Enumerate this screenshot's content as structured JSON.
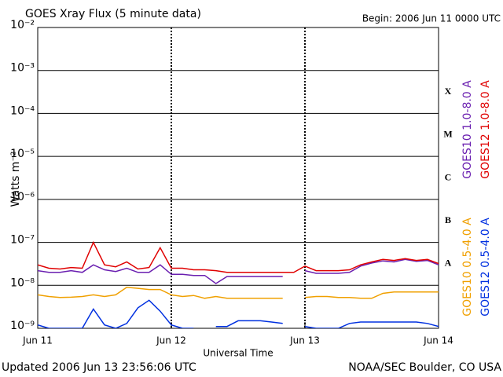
{
  "chart_data": {
    "type": "line",
    "title": "GOES Xray Flux (5 minute data)",
    "subtitle": "Begin:  2006 Jun 11 0000 UTC",
    "xlabel": "Universal Time",
    "ylabel": "Watts m⁻²",
    "footer_left": "Updated 2006 Jun 13 23:56:06 UTC",
    "footer_right": "NOAA/SEC Boulder, CO USA",
    "log_y": true,
    "grid": true,
    "xlim": [
      0,
      72
    ],
    "xticks": [
      {
        "value": 0,
        "label": "Jun 11"
      },
      {
        "value": 24,
        "label": "Jun 12"
      },
      {
        "value": 48,
        "label": "Jun 13"
      },
      {
        "value": 72,
        "label": "Jun 14"
      }
    ],
    "ylim": [
      1e-09,
      0.01
    ],
    "yticks": [
      {
        "value": 1e-09,
        "label": "10⁻⁹"
      },
      {
        "value": 1e-08,
        "label": "10⁻⁸"
      },
      {
        "value": 1e-07,
        "label": "10⁻⁷"
      },
      {
        "value": 1e-06,
        "label": "10⁻⁶"
      },
      {
        "value": 1e-05,
        "label": "10⁻⁵"
      },
      {
        "value": 0.0001,
        "label": "10⁻⁴"
      },
      {
        "value": 0.001,
        "label": "10⁻³"
      },
      {
        "value": 0.01,
        "label": "10⁻²"
      }
    ],
    "flare_classes": [
      {
        "value": 1e-08,
        "label": "A"
      },
      {
        "value": 1e-07,
        "label": "B"
      },
      {
        "value": 1e-06,
        "label": "C"
      },
      {
        "value": 1e-05,
        "label": "M"
      },
      {
        "value": 0.0001,
        "label": "X"
      }
    ],
    "x": [
      0,
      2,
      4,
      6,
      8,
      10,
      12,
      14,
      16,
      18,
      20,
      22,
      24,
      26,
      28,
      30,
      32,
      34,
      36,
      38,
      40,
      42,
      44,
      46,
      48,
      50,
      52,
      54,
      56,
      58,
      60,
      62,
      64,
      66,
      68,
      70,
      72
    ],
    "series": [
      {
        "name": "GOES10 1.0-8.0 A",
        "color": "#6a1fb0",
        "values": [
          2.2e-08,
          2e-08,
          2e-08,
          2.2e-08,
          2e-08,
          3e-08,
          2.3e-08,
          2.1e-08,
          2.5e-08,
          2e-08,
          2e-08,
          3e-08,
          1.8e-08,
          1.8e-08,
          1.7e-08,
          1.7e-08,
          1.1e-08,
          1.6e-08,
          1.6e-08,
          1.6e-08,
          1.6e-08,
          1.6e-08,
          1.6e-08,
          null,
          2.2e-08,
          1.9e-08,
          1.9e-08,
          1.9e-08,
          2e-08,
          2.8e-08,
          3.3e-08,
          3.7e-08,
          3.5e-08,
          4e-08,
          3.6e-08,
          3.8e-08,
          3e-08
        ]
      },
      {
        "name": "GOES12 1.0-8.0 A",
        "color": "#e00000",
        "values": [
          3e-08,
          2.5e-08,
          2.4e-08,
          2.6e-08,
          2.5e-08,
          1e-07,
          3e-08,
          2.7e-08,
          3.5e-08,
          2.4e-08,
          2.6e-08,
          7.5e-08,
          2.5e-08,
          2.5e-08,
          2.3e-08,
          2.3e-08,
          2.2e-08,
          2e-08,
          2e-08,
          2e-08,
          2e-08,
          2e-08,
          2e-08,
          2e-08,
          2.8e-08,
          2.2e-08,
          2.2e-08,
          2.2e-08,
          2.3e-08,
          3e-08,
          3.5e-08,
          4e-08,
          3.8e-08,
          4.2e-08,
          3.8e-08,
          4e-08,
          3.2e-08
        ]
      },
      {
        "name": "GOES10 0.5-4.0 A",
        "color": "#f0a000",
        "values": [
          6e-09,
          5.5e-09,
          5.2e-09,
          5.3e-09,
          5.5e-09,
          6e-09,
          5.5e-09,
          6e-09,
          9e-09,
          8.5e-09,
          8e-09,
          8e-09,
          6e-09,
          5.5e-09,
          5.8e-09,
          5e-09,
          5.5e-09,
          5e-09,
          5e-09,
          5e-09,
          5e-09,
          5e-09,
          5e-09,
          null,
          5.2e-09,
          5.5e-09,
          5.5e-09,
          5.2e-09,
          5.2e-09,
          5e-09,
          5e-09,
          6.5e-09,
          7e-09,
          7e-09,
          7e-09,
          7e-09,
          7e-09
        ]
      },
      {
        "name": "GOES12 0.5-4.0 A",
        "color": "#0030e0",
        "values": [
          1.2e-09,
          1e-09,
          1e-09,
          1e-09,
          1e-09,
          2.8e-09,
          1.2e-09,
          1e-09,
          1.3e-09,
          3e-09,
          4.5e-09,
          2.5e-09,
          1.2e-09,
          1e-09,
          1e-09,
          null,
          1.1e-09,
          1.1e-09,
          1.5e-09,
          1.5e-09,
          1.5e-09,
          1.4e-09,
          1.3e-09,
          null,
          1.1e-09,
          1e-09,
          1e-09,
          1e-09,
          1.3e-09,
          1.4e-09,
          1.4e-09,
          1.4e-09,
          1.4e-09,
          1.4e-09,
          1.4e-09,
          1.3e-09,
          1.1e-09
        ]
      }
    ]
  }
}
